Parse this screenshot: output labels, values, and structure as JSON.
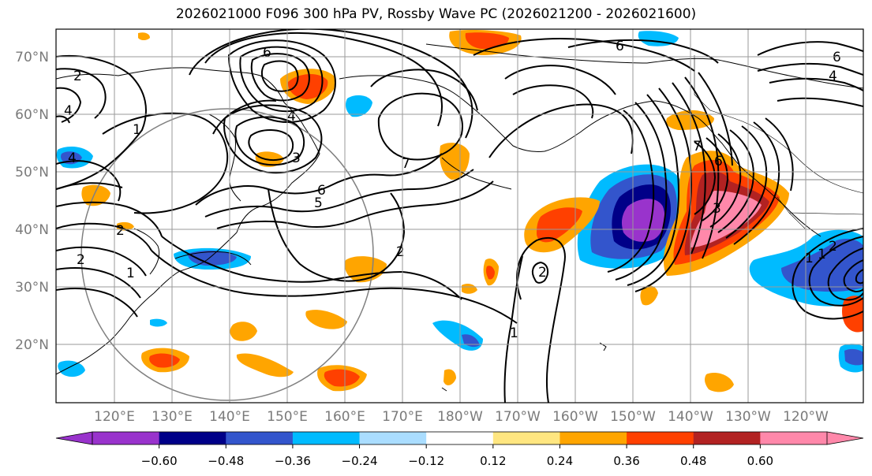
{
  "title": "2026021000 F096 300 hPa PV, Rossby Wave PC (2026021200 - 2026021600)",
  "map": {
    "lat_labels": [
      "70°N",
      "60°N",
      "50°N",
      "40°N",
      "30°N",
      "20°N"
    ],
    "lon_labels": [
      "120°E",
      "130°E",
      "140°E",
      "150°E",
      "160°E",
      "170°E",
      "180°W",
      "170°W",
      "160°W",
      "150°W",
      "140°W",
      "130°W",
      "120°W"
    ],
    "contour_labels": [
      "2",
      "2",
      "2",
      "1",
      "1",
      "4",
      "4",
      "6",
      "4",
      "3",
      "5",
      "6",
      "7",
      "2",
      "2",
      "1",
      "6",
      "4",
      "6",
      "7",
      "6",
      "3",
      "1",
      "1",
      "2"
    ]
  },
  "colorbar": {
    "colors": [
      "#9933cc",
      "#000088",
      "#3355cc",
      "#00bbff",
      "#aaddff",
      "#ffffff",
      "#ffe680",
      "#ffa500",
      "#ff4000",
      "#b22222",
      "#ff88aa"
    ],
    "under_color": "#9933cc",
    "over_color": "#ff88aa",
    "tick_labels": [
      "−0.60",
      "−0.48",
      "−0.36",
      "−0.24",
      "−0.12",
      "0.12",
      "0.24",
      "0.36",
      "0.48",
      "0.60"
    ]
  }
}
